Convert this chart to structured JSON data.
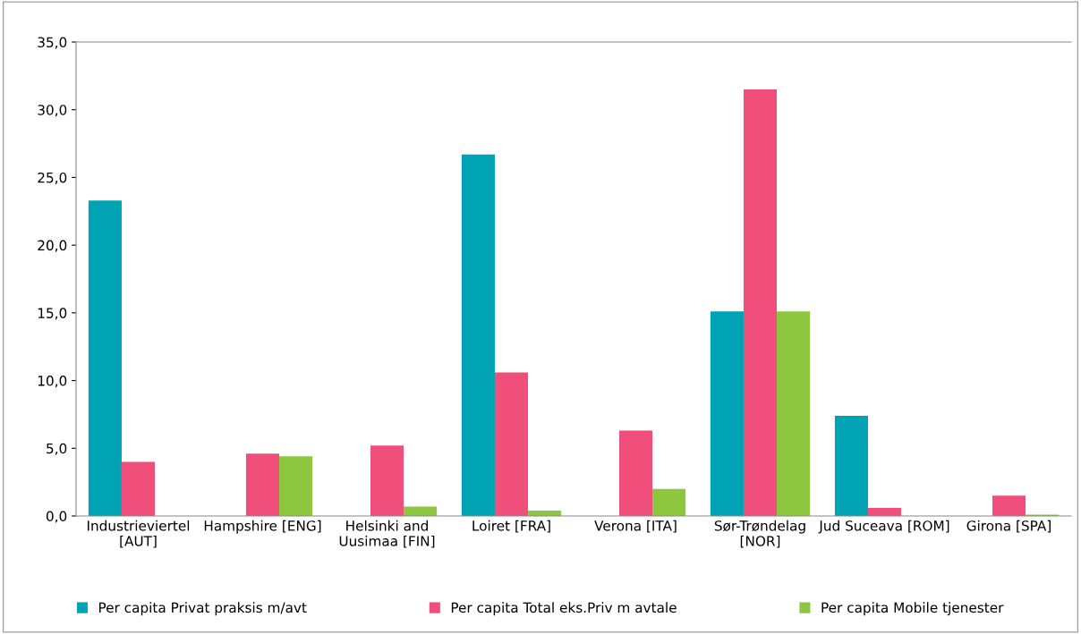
{
  "chart_data": {
    "type": "bar",
    "categories": [
      "Industrieviertel\n[AUT]",
      "Hampshire [ENG]",
      "Helsinki and\nUusimaa [FIN]",
      "Loiret [FRA]",
      "Verona [ITA]",
      "Sør-Trøndelag\n[NOR]",
      "Jud Suceava [ROM]",
      "Girona [SPA]"
    ],
    "series": [
      {
        "name": "Per capita Privat praksis m/avt",
        "color": "#00a3b4",
        "values": [
          23.3,
          null,
          null,
          26.7,
          null,
          15.1,
          7.4,
          null
        ]
      },
      {
        "name": "Per capita Total eks.Priv m avtale",
        "color": "#f04e7b",
        "values": [
          4.0,
          4.6,
          5.2,
          10.6,
          6.3,
          31.5,
          0.6,
          1.5
        ]
      },
      {
        "name": "Per capita Mobile tjenester",
        "color": "#8dc63f",
        "values": [
          null,
          4.4,
          0.7,
          0.4,
          2.0,
          15.1,
          null,
          0.1
        ]
      }
    ],
    "ylim": [
      0,
      35
    ],
    "yticks": [
      {
        "value": 0,
        "label": "0,0"
      },
      {
        "value": 5,
        "label": "5,0"
      },
      {
        "value": 10,
        "label": "10,0"
      },
      {
        "value": 15,
        "label": "15,0"
      },
      {
        "value": 20,
        "label": "20,0"
      },
      {
        "value": 25,
        "label": "25,0"
      },
      {
        "value": 30,
        "label": "30,0"
      },
      {
        "value": 35,
        "label": "35,0"
      }
    ],
    "grid": false,
    "legend": "bottom"
  }
}
